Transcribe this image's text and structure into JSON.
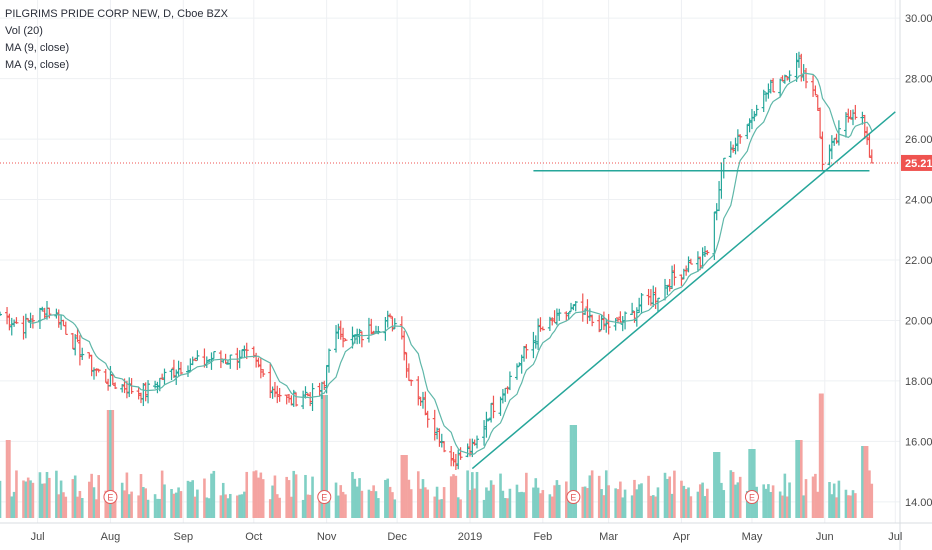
{
  "legend": {
    "symbol": "PILGRIMS PRIDE CORP NEW, D, Cboe BZX",
    "vol": "Vol (20)",
    "ma1": "MA (9, close)",
    "ma2": "MA (9, close)"
  },
  "colors": {
    "up": "#26a69a",
    "down": "#ef5350",
    "vol_up": "#7fcfc4",
    "vol_down": "#f4a3a0",
    "ma": "#5fb7a9",
    "trendline": "#26a69a",
    "price_line": "#ef5350",
    "price_tag_bg": "#ef5350",
    "grid": "#eef0f3"
  },
  "chart_data": {
    "type": "candlestick",
    "yaxis": {
      "ticks": [
        "30.00",
        "28.00",
        "26.00",
        "24.00",
        "22.00",
        "20.00",
        "18.00",
        "16.00",
        "14.00"
      ],
      "ylim": [
        13.3,
        30.6
      ]
    },
    "xaxis": {
      "labels": [
        "Jul",
        "Aug",
        "Sep",
        "Oct",
        "Nov",
        "Dec",
        "2019",
        "Feb",
        "Mar",
        "Apr",
        "May",
        "Jun",
        "Jul"
      ],
      "dates": [
        "2018-07-01",
        "2018-08-01",
        "2018-09-01",
        "2018-10-01",
        "2018-11-01",
        "2018-12-01",
        "2019-01-01",
        "2019-02-01",
        "2019-03-01",
        "2019-04-01",
        "2019-05-01",
        "2019-06-01",
        "2019-07-01"
      ],
      "range": [
        "2018-06-15",
        "2019-07-03"
      ]
    },
    "last_price": "25.21",
    "last_price_value": 25.21,
    "earnings_markers": [
      "E",
      "E",
      "E",
      "E"
    ],
    "earnings_dates": [
      "2018-08-01",
      "2018-10-31",
      "2019-02-14",
      "2019-05-01"
    ],
    "trendlines": [
      {
        "start": [
          "2019-01-02",
          15.1
        ],
        "end": [
          "2019-07-01",
          26.9
        ]
      },
      {
        "start": [
          "2019-01-28",
          24.95
        ],
        "end": [
          "2019-06-20",
          24.95
        ]
      }
    ],
    "price_anchors": [
      [
        "2018-06-15",
        20.2
      ],
      [
        "2018-06-20",
        20.0
      ],
      [
        "2018-06-25",
        19.8
      ],
      [
        "2018-06-29",
        20.1
      ],
      [
        "2018-07-05",
        20.4
      ],
      [
        "2018-07-10",
        20.1
      ],
      [
        "2018-07-16",
        19.3
      ],
      [
        "2018-07-20",
        18.9
      ],
      [
        "2018-07-25",
        18.4
      ],
      [
        "2018-07-31",
        18.0
      ],
      [
        "2018-08-03",
        17.9
      ],
      [
        "2018-08-08",
        17.8
      ],
      [
        "2018-08-13",
        17.6
      ],
      [
        "2018-08-17",
        17.7
      ],
      [
        "2018-08-23",
        18.1
      ],
      [
        "2018-08-29",
        18.4
      ],
      [
        "2018-09-04",
        18.6
      ],
      [
        "2018-09-10",
        18.6
      ],
      [
        "2018-09-14",
        18.8
      ],
      [
        "2018-09-20",
        18.7
      ],
      [
        "2018-09-26",
        18.9
      ],
      [
        "2018-10-01",
        18.6
      ],
      [
        "2018-10-05",
        18.2
      ],
      [
        "2018-10-10",
        17.7
      ],
      [
        "2018-10-16",
        17.3
      ],
      [
        "2018-10-22",
        17.6
      ],
      [
        "2018-10-26",
        17.5
      ],
      [
        "2018-10-31",
        17.8
      ],
      [
        "2018-11-02",
        19.2
      ],
      [
        "2018-11-07",
        19.6
      ],
      [
        "2018-11-12",
        19.4
      ],
      [
        "2018-11-16",
        19.5
      ],
      [
        "2018-11-21",
        19.8
      ],
      [
        "2018-11-27",
        20.0
      ],
      [
        "2018-11-30",
        19.9
      ],
      [
        "2018-12-03",
        19.7
      ],
      [
        "2018-12-05",
        18.4
      ],
      [
        "2018-12-10",
        17.6
      ],
      [
        "2018-12-14",
        16.9
      ],
      [
        "2018-12-19",
        16.2
      ],
      [
        "2018-12-24",
        15.4
      ],
      [
        "2018-12-28",
        15.5
      ],
      [
        "2019-01-03",
        15.8
      ],
      [
        "2019-01-08",
        16.8
      ],
      [
        "2019-01-14",
        17.6
      ],
      [
        "2019-01-18",
        18.1
      ],
      [
        "2019-01-24",
        18.9
      ],
      [
        "2019-01-30",
        19.6
      ],
      [
        "2019-02-05",
        19.9
      ],
      [
        "2019-02-11",
        20.2
      ],
      [
        "2019-02-15",
        20.4
      ],
      [
        "2019-02-21",
        20.0
      ],
      [
        "2019-02-27",
        19.8
      ],
      [
        "2019-03-05",
        19.9
      ],
      [
        "2019-03-11",
        20.2
      ],
      [
        "2019-03-15",
        20.6
      ],
      [
        "2019-03-21",
        20.8
      ],
      [
        "2019-03-27",
        21.3
      ],
      [
        "2019-04-01",
        21.6
      ],
      [
        "2019-04-05",
        22.0
      ],
      [
        "2019-04-09",
        21.9
      ],
      [
        "2019-04-12",
        22.3
      ],
      [
        "2019-04-16",
        23.8
      ],
      [
        "2019-04-18",
        25.0
      ],
      [
        "2019-04-24",
        26.0
      ],
      [
        "2019-04-30",
        26.6
      ],
      [
        "2019-05-03",
        27.2
      ],
      [
        "2019-05-08",
        27.6
      ],
      [
        "2019-05-13",
        28.0
      ],
      [
        "2019-05-17",
        28.3
      ],
      [
        "2019-05-21",
        28.5
      ],
      [
        "2019-05-24",
        28.0
      ],
      [
        "2019-05-28",
        27.6
      ],
      [
        "2019-05-31",
        25.3
      ],
      [
        "2019-06-05",
        25.8
      ],
      [
        "2019-06-10",
        26.6
      ],
      [
        "2019-06-13",
        27.0
      ],
      [
        "2019-06-17",
        26.6
      ],
      [
        "2019-06-19",
        25.8
      ],
      [
        "2019-06-21",
        25.21
      ]
    ],
    "volume_spikes": [
      [
        "2018-06-18",
        0.52
      ],
      [
        "2018-08-01",
        0.72
      ],
      [
        "2018-10-31",
        0.82
      ],
      [
        "2018-12-04",
        0.42
      ],
      [
        "2019-02-14",
        0.62
      ],
      [
        "2019-04-16",
        0.44
      ],
      [
        "2019-05-01",
        0.46
      ],
      [
        "2019-05-21",
        0.52
      ],
      [
        "2019-05-31",
        0.83
      ],
      [
        "2019-06-18",
        0.48
      ]
    ]
  }
}
